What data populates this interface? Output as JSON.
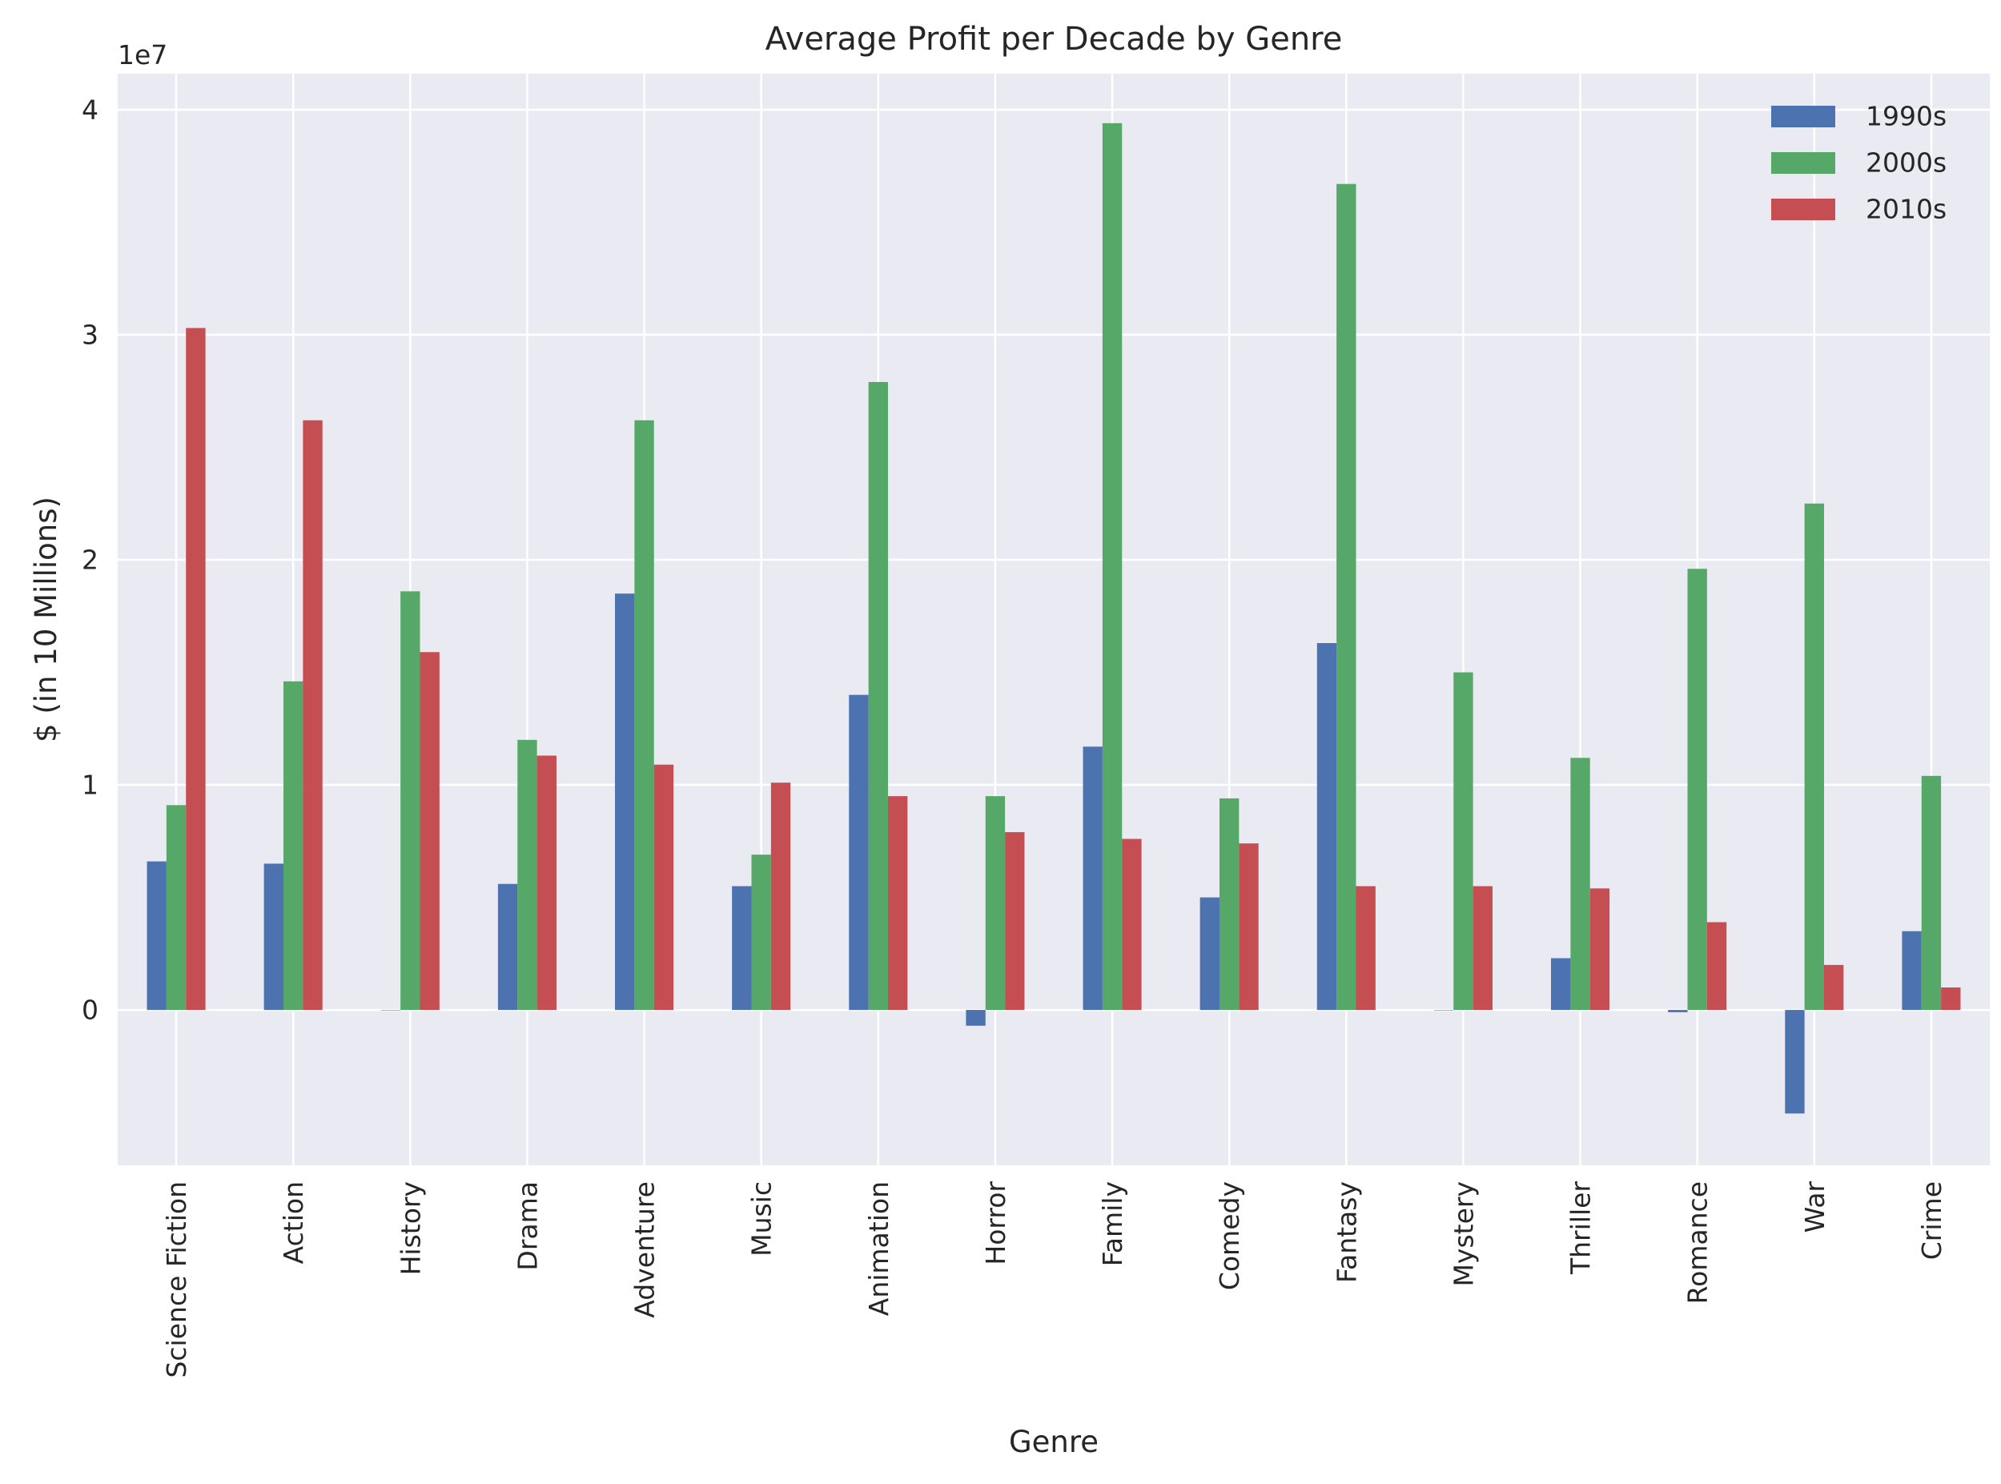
{
  "chart_data": {
    "type": "bar",
    "title": "Average Profit per Decade by Genre",
    "xlabel": "Genre",
    "ylabel": "$ (in 10 Millions)",
    "offset_text": "1e7",
    "ylim": [
      -6900000,
      41600000
    ],
    "yticks": [
      {
        "value": 0,
        "label": "0"
      },
      {
        "value": 10000000,
        "label": "1"
      },
      {
        "value": 20000000,
        "label": "2"
      },
      {
        "value": 30000000,
        "label": "3"
      },
      {
        "value": 40000000,
        "label": "4"
      }
    ],
    "grid": true,
    "legend_position": "top-right",
    "categories": [
      "Science Fiction",
      "Action",
      "History",
      "Drama",
      "Adventure",
      "Music",
      "Animation",
      "Horror",
      "Family",
      "Comedy",
      "Fantasy",
      "Mystery",
      "Thriller",
      "Romance",
      "War",
      "Crime"
    ],
    "series": [
      {
        "name": "1990s",
        "color": "#4c72b0",
        "values": [
          6600000,
          6500000,
          0,
          5600000,
          18500000,
          5500000,
          14000000,
          -700000,
          11700000,
          5000000,
          16300000,
          0,
          2300000,
          -100000,
          -4600000,
          3500000
        ]
      },
      {
        "name": "2000s",
        "color": "#55a868",
        "values": [
          9100000,
          14600000,
          18600000,
          12000000,
          26200000,
          6900000,
          27900000,
          9500000,
          39400000,
          9400000,
          36700000,
          15000000,
          11200000,
          19600000,
          22500000,
          10400000
        ]
      },
      {
        "name": "2010s",
        "color": "#c44e52",
        "values": [
          30300000,
          26200000,
          15900000,
          11300000,
          10900000,
          10100000,
          9500000,
          7900000,
          7600000,
          7400000,
          5500000,
          5500000,
          5400000,
          3900000,
          2000000,
          1000000
        ]
      }
    ],
    "colors": {
      "plot_background": "#eaeaf2",
      "grid": "#ffffff",
      "text": "#262626"
    }
  }
}
